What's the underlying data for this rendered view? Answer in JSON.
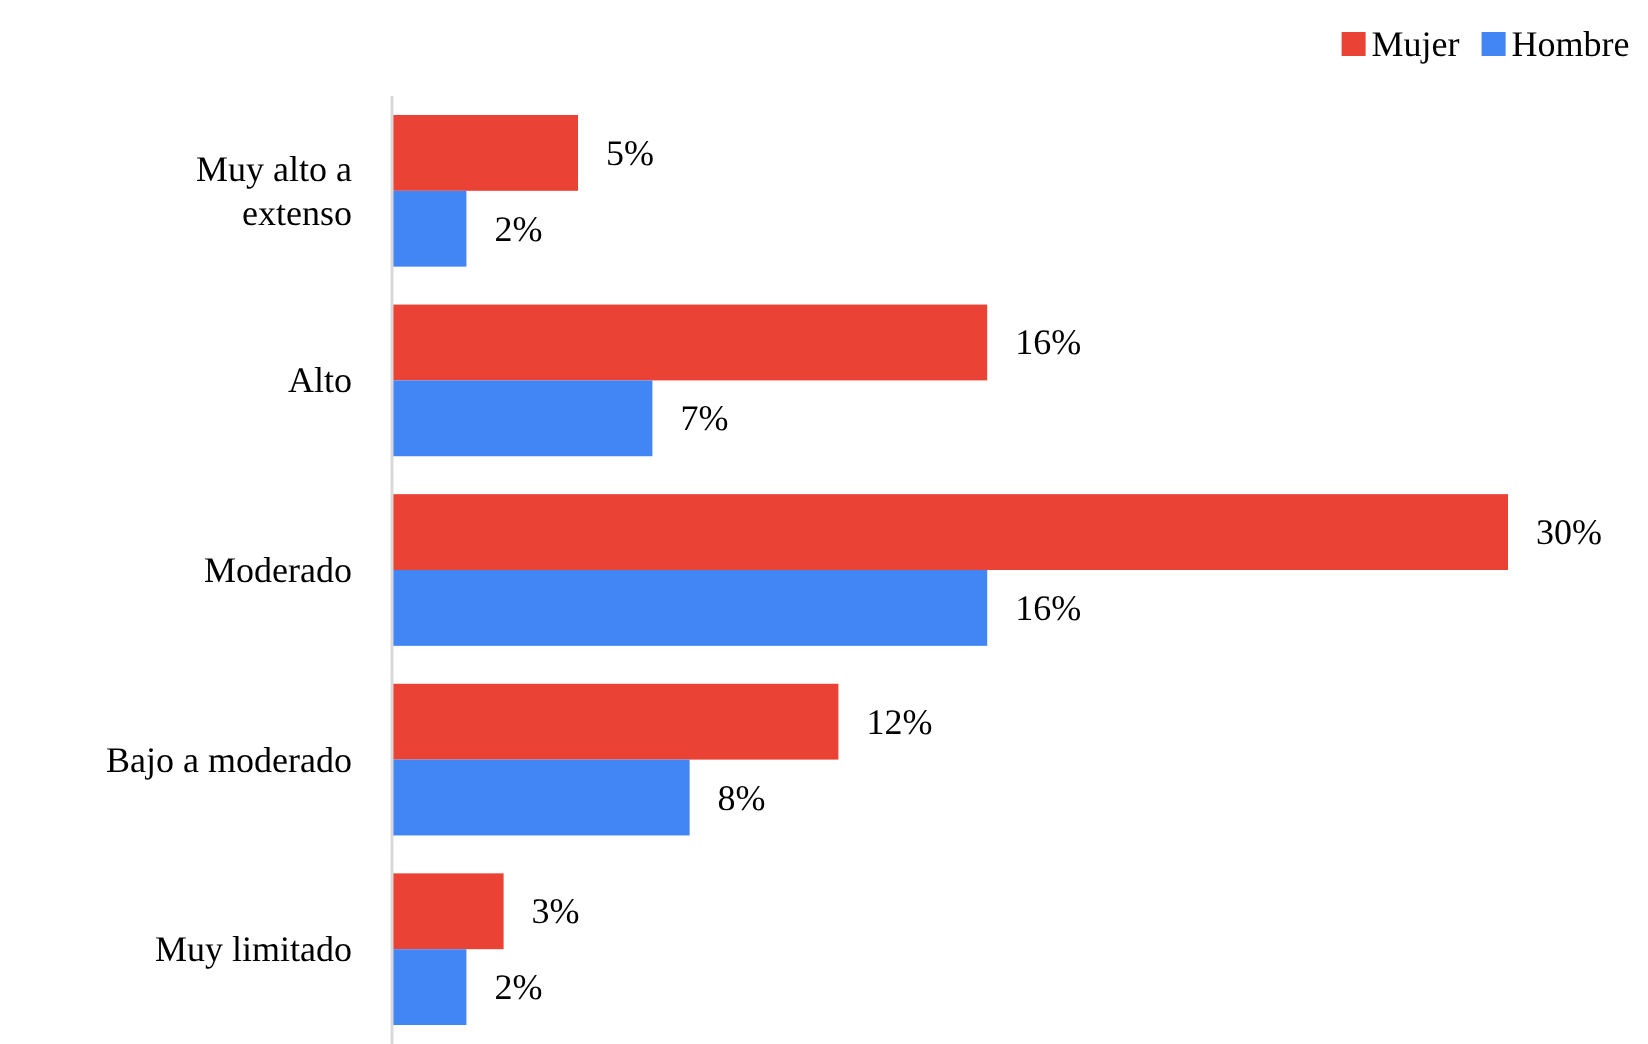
{
  "chart_data": {
    "type": "bar",
    "orientation": "horizontal",
    "categories": [
      "Muy alto a extenso",
      "Alto",
      "Moderado",
      "Bajo a moderado",
      "Muy limitado"
    ],
    "series": [
      {
        "name": "Mujer",
        "color": "#ea4335",
        "values": [
          5,
          16,
          30,
          12,
          3
        ],
        "value_labels": [
          "5%",
          "16%",
          "30%",
          "12%",
          "3%"
        ]
      },
      {
        "name": "Hombre",
        "color": "#4285f4",
        "values": [
          2,
          7,
          16,
          8,
          2
        ],
        "value_labels": [
          "2%",
          "7%",
          "16%",
          "8%",
          "2%"
        ]
      }
    ],
    "legend": "top right"
  }
}
